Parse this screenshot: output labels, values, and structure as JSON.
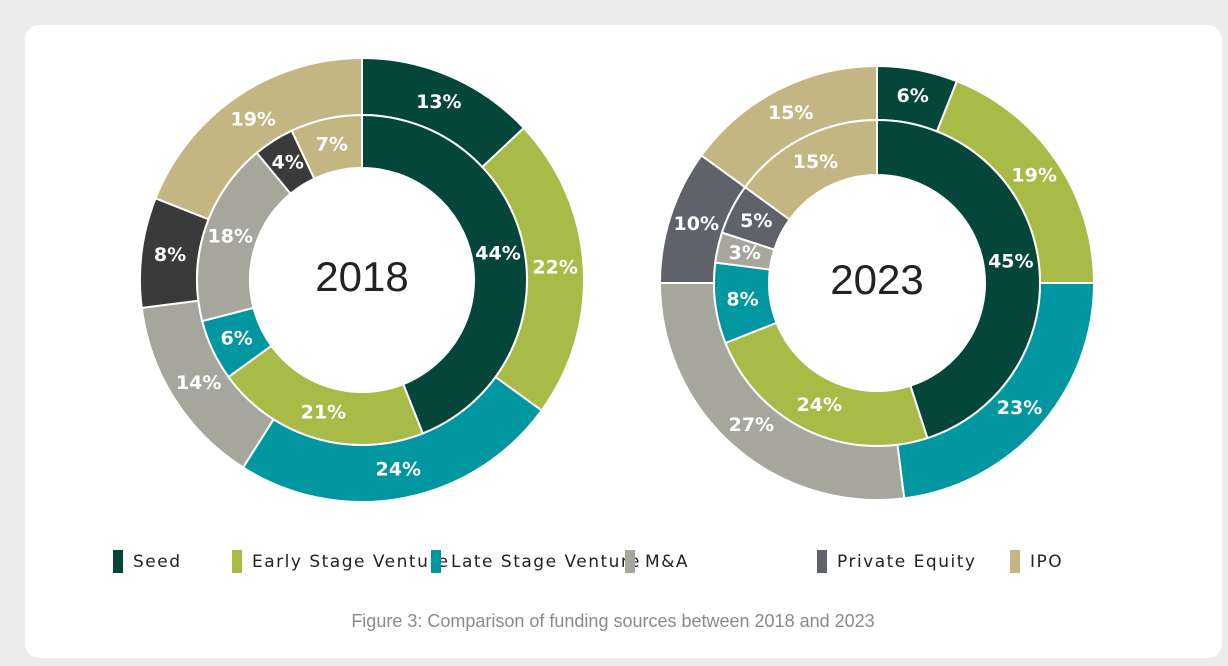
{
  "chart_data": [
    {
      "type": "donut",
      "title": "2018",
      "categories": [
        "Seed",
        "Early Stage Venture",
        "Late Stage Venture",
        "M&A",
        "Private Equity",
        "IPO"
      ],
      "colors": [
        "#05463a",
        "#a8bb47",
        "#0097a0",
        "#a6a69c",
        "#3b3a3a",
        "#c4b683"
      ],
      "rings": [
        {
          "values": [
            13,
            22,
            24,
            14,
            8,
            19
          ],
          "value_labels": [
            "13%",
            "22%",
            "24%",
            "14%",
            "8%",
            "19%"
          ]
        },
        {
          "values": [
            44,
            21,
            6,
            18,
            4,
            7
          ],
          "value_labels": [
            "44%",
            "21%",
            "6%",
            "18%",
            "4%",
            "7%"
          ]
        }
      ]
    },
    {
      "type": "donut",
      "title": "2023",
      "categories": [
        "Seed",
        "Early Stage Venture",
        "Late Stage Venture",
        "M&A",
        "Private Equity",
        "IPO"
      ],
      "colors": [
        "#05463a",
        "#a8bb47",
        "#0097a0",
        "#a6a69c",
        "#5f6268",
        "#c4b683"
      ],
      "rings": [
        {
          "values": [
            6,
            19,
            23,
            27,
            10,
            15
          ],
          "value_labels": [
            "6%",
            "19%",
            "23%",
            "27%",
            "10%",
            "15%"
          ]
        },
        {
          "values": [
            45,
            24,
            8,
            3,
            5,
            15
          ],
          "value_labels": [
            "45%",
            "24%",
            "8%",
            "3%",
            "5%",
            "15%"
          ]
        }
      ]
    }
  ],
  "caption": "Figure 3: Comparison of funding sources between 2018 and 2023"
}
